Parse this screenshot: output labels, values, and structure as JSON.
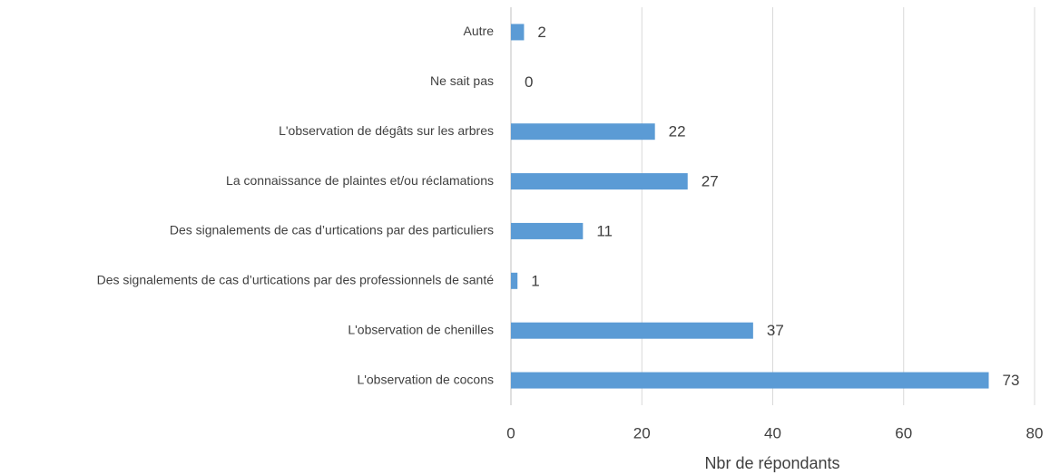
{
  "chart_data": {
    "type": "bar",
    "orientation": "horizontal",
    "categories": [
      "Autre",
      "Ne sait pas",
      "L'observation de dégâts sur les arbres",
      "La connaissance de plaintes et/ou réclamations",
      "Des signalements de cas d’urtications par des particuliers",
      "Des signalements de cas d’urtications par des professionnels de santé",
      "L'observation de chenilles",
      "L'observation de cocons"
    ],
    "values": [
      2,
      0,
      22,
      27,
      11,
      1,
      37,
      73
    ],
    "color": "#5b9bd5",
    "xlim": [
      0,
      80
    ],
    "xticks": [
      0,
      20,
      40,
      60,
      80
    ],
    "x_label": "Nbr de répondants",
    "grid": true
  }
}
